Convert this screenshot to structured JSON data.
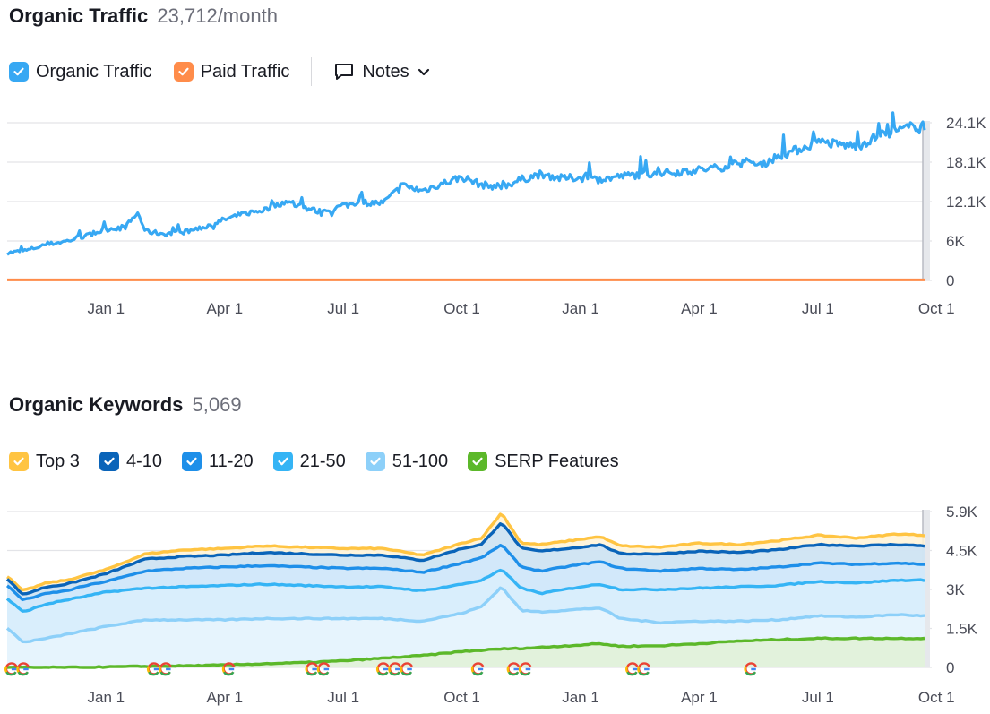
{
  "traffic": {
    "title": "Organic Traffic",
    "value": "23,712/month",
    "legend": [
      {
        "label": "Organic Traffic",
        "color": "#37a8f3"
      },
      {
        "label": "Paid Traffic",
        "color": "#ff8c4a"
      }
    ],
    "notes_label": "Notes"
  },
  "keywords": {
    "title": "Organic Keywords",
    "value": "5,069",
    "legend": [
      {
        "label": "Top 3",
        "color": "#ffc442"
      },
      {
        "label": "4-10",
        "color": "#0a64b9"
      },
      {
        "label": "11-20",
        "color": "#1e8fe9"
      },
      {
        "label": "21-50",
        "color": "#35b4f5"
      },
      {
        "label": "51-100",
        "color": "#8dd0f9"
      },
      {
        "label": "SERP Features",
        "color": "#5cb82a"
      }
    ]
  },
  "chart_data": [
    {
      "type": "line",
      "name": "organic-traffic",
      "x_ticks": [
        "Jan 1",
        "Apr 1",
        "Jul 1",
        "Oct 1",
        "Jan 1",
        "Apr 1",
        "Jul 1",
        "Oct 1"
      ],
      "y_ticks": [
        "0",
        "6K",
        "12.1K",
        "18.1K",
        "24.1K"
      ],
      "ylim": [
        0,
        24100
      ],
      "x_months": [
        -2.5,
        0,
        3,
        6,
        9,
        12,
        15,
        18,
        21,
        20.7
      ],
      "grid": true,
      "series": [
        {
          "name": "Organic Traffic",
          "color": "#37a8f3",
          "x": [
            -2.5,
            -2,
            -1.5,
            -1,
            -0.5,
            0,
            0.5,
            0.8,
            1,
            1.5,
            2,
            2.5,
            3,
            3.5,
            4,
            4.5,
            5,
            5.5,
            6,
            6.5,
            7,
            7.5,
            8,
            8.5,
            9,
            9.5,
            10,
            10.5,
            11,
            11.5,
            12,
            12.5,
            13,
            13.5,
            14,
            14.5,
            15,
            15.5,
            16,
            16.5,
            17,
            17.5,
            18,
            18.5,
            19,
            19.5,
            19.8,
            20,
            20.5,
            20.7
          ],
          "y": [
            4200,
            4600,
            5500,
            6000,
            6800,
            7800,
            8200,
            10300,
            7500,
            7100,
            7400,
            8200,
            9300,
            10200,
            10800,
            12000,
            11200,
            10300,
            11500,
            11900,
            11800,
            14500,
            13700,
            14800,
            15800,
            14600,
            14300,
            15400,
            16300,
            15600,
            15700,
            15400,
            15900,
            16200,
            16400,
            16600,
            16900,
            17200,
            18000,
            17600,
            19000,
            20000,
            21200,
            20800,
            20500,
            22000,
            22600,
            22800,
            23700,
            23700
          ]
        },
        {
          "name": "Paid Traffic",
          "color": "#ff8c4a",
          "x": [
            -2.5,
            20.7
          ],
          "y": [
            80,
            80
          ]
        }
      ]
    },
    {
      "type": "area",
      "name": "organic-keywords",
      "x_ticks": [
        "Jan 1",
        "Apr 1",
        "Jul 1",
        "Oct 1",
        "Jan 1",
        "Apr 1",
        "Jul 1",
        "Oct 1"
      ],
      "y_ticks": [
        "0",
        "1.5K",
        "3K",
        "4.5K",
        "5.9K"
      ],
      "ylim": [
        0,
        5900
      ],
      "grid": true,
      "x": [
        -2.5,
        -2.1,
        -1.5,
        -1,
        -0.5,
        0,
        1,
        2,
        3,
        4,
        5,
        6,
        7,
        8,
        9,
        9.5,
        10,
        10.5,
        11,
        12,
        12.5,
        13,
        14,
        15,
        16,
        17,
        18,
        19,
        20,
        20.7
      ],
      "series": [
        {
          "name": "Top 3",
          "color": "#ffc442",
          "y": [
            3450,
            2900,
            3200,
            3300,
            3500,
            3700,
            4300,
            4450,
            4500,
            4600,
            4550,
            4500,
            4500,
            4250,
            4700,
            4900,
            5850,
            4700,
            4650,
            4850,
            4950,
            4600,
            4550,
            4700,
            4650,
            4800,
            5000,
            4900,
            5050,
            5000
          ]
        },
        {
          "name": "4-10",
          "color": "#0a64b9",
          "y": [
            3350,
            2750,
            3050,
            3150,
            3350,
            3550,
            4100,
            4200,
            4250,
            4350,
            4300,
            4250,
            4250,
            4050,
            4500,
            4650,
            5500,
            4500,
            4400,
            4550,
            4650,
            4300,
            4300,
            4400,
            4350,
            4450,
            4650,
            4600,
            4650,
            4600
          ]
        },
        {
          "name": "11-20",
          "color": "#1e8fe9",
          "y": [
            3100,
            2550,
            2800,
            2900,
            3100,
            3250,
            3650,
            3750,
            3800,
            3850,
            3800,
            3750,
            3750,
            3600,
            3950,
            4150,
            4650,
            3800,
            3650,
            3900,
            4000,
            3750,
            3650,
            3750,
            3700,
            3800,
            3950,
            3900,
            3950,
            3900
          ]
        },
        {
          "name": "21-50",
          "color": "#35b4f5",
          "y": [
            2600,
            2100,
            2400,
            2550,
            2700,
            2850,
            3000,
            3050,
            3100,
            3150,
            3100,
            3050,
            3050,
            2900,
            3150,
            3300,
            3700,
            3000,
            2800,
            3050,
            3150,
            2950,
            2950,
            3000,
            3050,
            3100,
            3250,
            3200,
            3300,
            3300
          ]
        },
        {
          "name": "51-100",
          "color": "#8dd0f9",
          "y": [
            1500,
            950,
            1100,
            1250,
            1400,
            1550,
            1800,
            1800,
            1800,
            1850,
            1850,
            1850,
            1850,
            1750,
            2050,
            2300,
            3050,
            2150,
            2100,
            2200,
            2250,
            1850,
            1700,
            1750,
            1750,
            1800,
            1950,
            1900,
            2000,
            1950
          ]
        },
        {
          "name": "SERP Features",
          "color": "#5cb82a",
          "y": [
            0,
            0,
            0,
            0,
            0,
            20,
            40,
            60,
            90,
            140,
            180,
            250,
            350,
            450,
            600,
            650,
            700,
            720,
            760,
            850,
            900,
            800,
            820,
            900,
            1000,
            1050,
            1100,
            1100,
            1100,
            1100
          ]
        }
      ],
      "google_update_markers": 18
    }
  ]
}
